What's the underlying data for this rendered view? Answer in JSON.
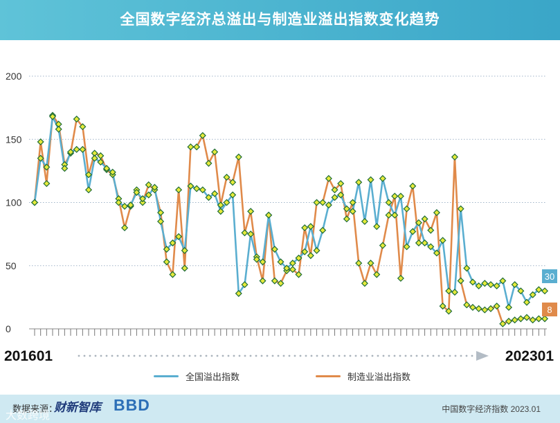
{
  "title": "全国数字经济总溢出与制造业溢出指数变化趋势",
  "chart_data": {
    "type": "line",
    "x_start_label": "201601",
    "x_end_label": "202301",
    "ylim": [
      0,
      200
    ],
    "yticks": [
      0,
      50,
      100,
      150,
      200
    ],
    "grid": true,
    "legend_position": "bottom",
    "series": [
      {
        "name": "全国溢出指数",
        "color": "#5aaed0",
        "end_label": "30",
        "values": [
          100,
          135,
          128,
          168,
          158,
          127,
          140,
          142,
          142,
          110,
          135,
          132,
          127,
          124,
          100,
          97,
          98,
          108,
          103,
          106,
          112,
          85,
          63,
          68,
          73,
          62,
          113,
          111,
          110,
          104,
          107,
          93,
          100,
          106,
          28,
          35,
          75,
          55,
          53,
          90,
          63,
          53,
          48,
          52,
          56,
          61,
          81,
          62,
          78,
          98,
          104,
          106,
          95,
          93,
          116,
          85,
          118,
          81,
          119,
          100,
          90,
          105,
          65,
          77,
          84,
          68,
          65,
          60,
          70,
          30,
          29,
          95,
          48,
          37,
          34,
          36,
          35,
          34,
          38,
          17,
          35,
          30,
          21,
          27,
          31,
          30
        ]
      },
      {
        "name": "制造业溢出指数",
        "color": "#e08a4a",
        "end_label": "8",
        "values": [
          100,
          148,
          115,
          169,
          162,
          130,
          139,
          166,
          160,
          122,
          139,
          137,
          126,
          122,
          103,
          80,
          97,
          110,
          100,
          114,
          110,
          92,
          53,
          43,
          110,
          48,
          144,
          144,
          153,
          131,
          140,
          98,
          120,
          116,
          136,
          76,
          93,
          57,
          38,
          90,
          38,
          36,
          46,
          47,
          43,
          80,
          58,
          100,
          100,
          119,
          110,
          115,
          87,
          100,
          52,
          36,
          52,
          43,
          66,
          90,
          105,
          40,
          95,
          113,
          68,
          87,
          78,
          92,
          18,
          14,
          136,
          38,
          19,
          17,
          16,
          15,
          16,
          18,
          4,
          6,
          7,
          8,
          9,
          7,
          8,
          8
        ]
      }
    ]
  },
  "footer": {
    "source_label": "数据来源：",
    "logo_text": "财新智库",
    "logo_sub": "BBD",
    "note": "中国数字经济指数 2023.01"
  },
  "watermark": "大数跨境",
  "colors": {
    "title_bg": "#3aa6c8",
    "footer_bg": "#cfe9f2",
    "marker_fill": "#e6ea3a",
    "marker_stroke": "#1e6b38"
  }
}
